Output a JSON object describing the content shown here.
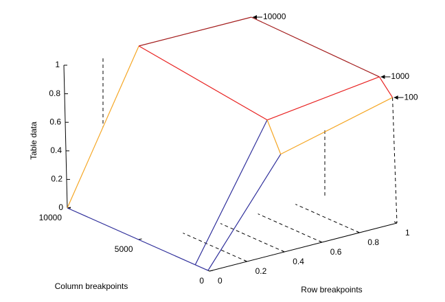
{
  "chart_data": {
    "type": "mesh3d",
    "zlabel": "Table data",
    "ylabel": "Column breakpoints",
    "xlabel": "Row breakpoints",
    "rows": [
      0,
      0.4,
      1
    ],
    "columns": [
      100,
      1000,
      10000
    ],
    "values": [
      [
        0,
        0.68,
        0.875
      ],
      [
        0,
        0.88,
        0.98
      ],
      [
        0,
        1,
        1
      ]
    ],
    "xlim": [
      0,
      1
    ],
    "xticks": [
      0,
      0.2,
      0.4,
      0.6,
      0.8,
      1
    ],
    "ylim": [
      0,
      10000
    ],
    "yticks": [
      0,
      5000,
      10000
    ],
    "zlim": [
      0,
      1
    ],
    "zticks": [
      0,
      0.2,
      0.4,
      0.6,
      0.8,
      1
    ],
    "colormap": [
      "#2e2e9a",
      "#f5a623",
      "#e8201f",
      "#a31c1c"
    ]
  }
}
